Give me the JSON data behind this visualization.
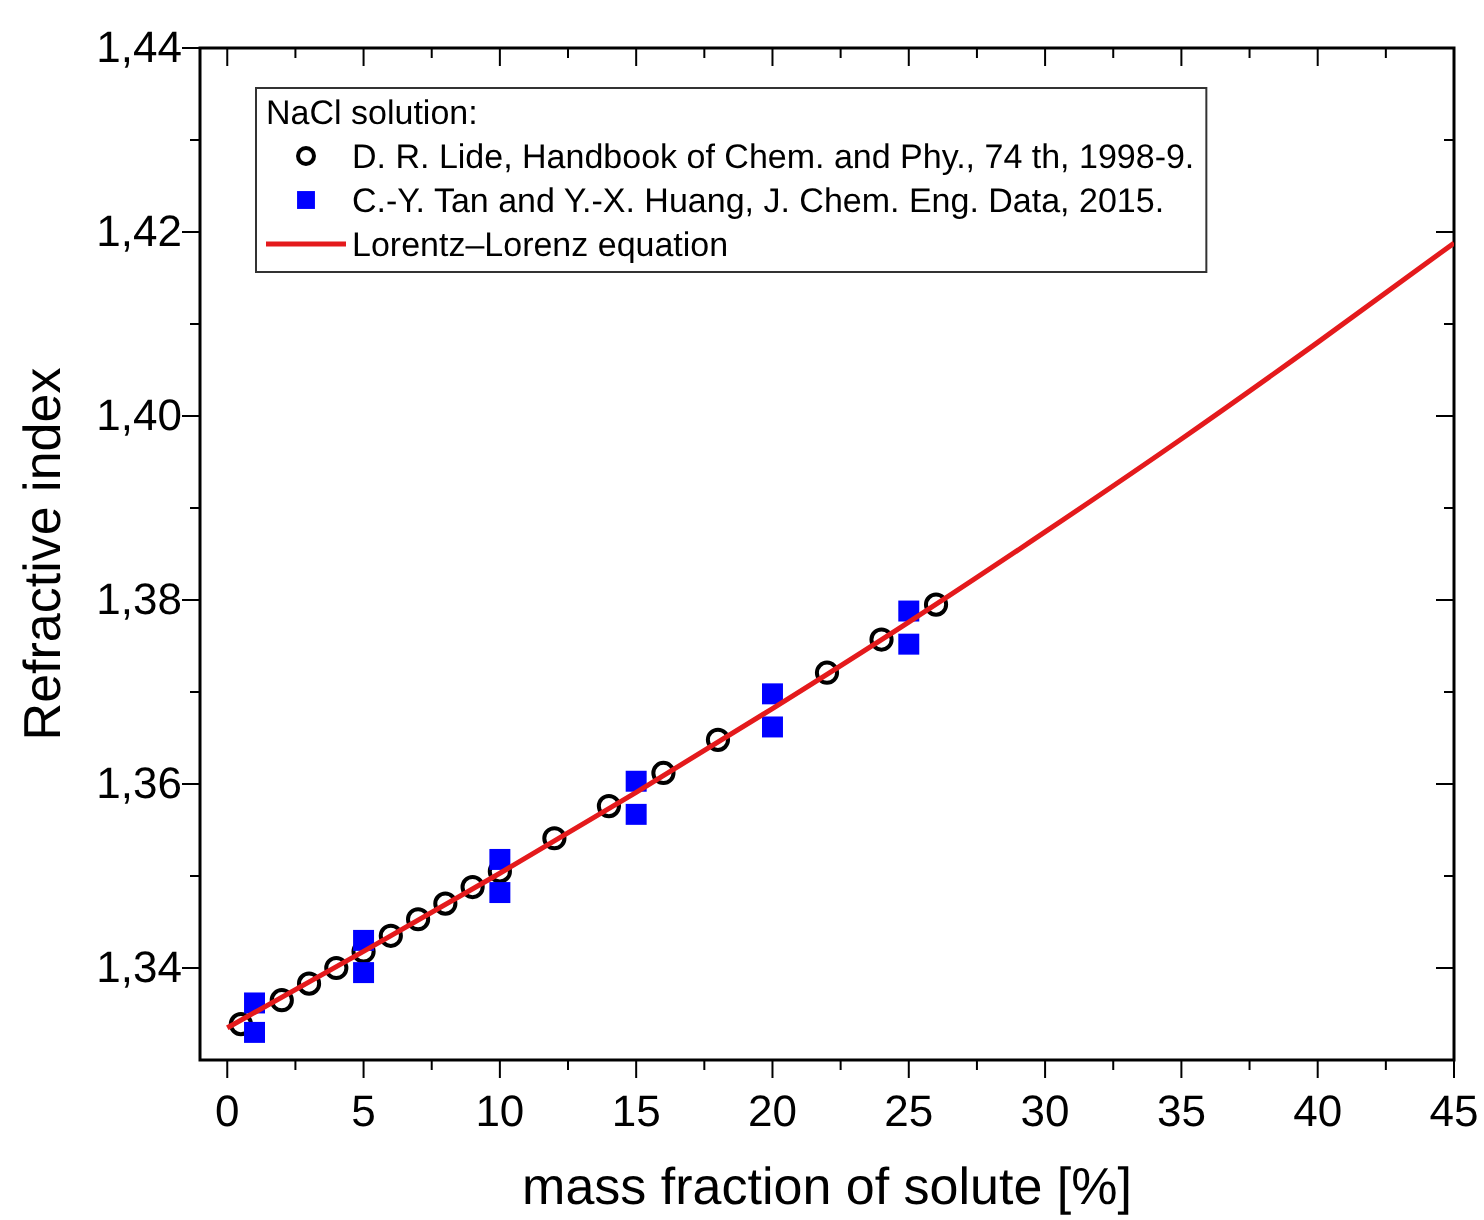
{
  "chart_data": {
    "type": "scatter",
    "xlabel": "mass fraction of solute [%]",
    "ylabel": "Refractive index",
    "legend_title": "NaCl solution:",
    "xlim": [
      -1,
      45
    ],
    "ylim": [
      1.33,
      1.44
    ],
    "xticks": [
      0,
      {
        "value": 2.5,
        "label": null
      },
      5,
      {
        "value": 7.5,
        "label": null
      },
      10,
      {
        "value": 12.5,
        "label": null
      },
      15,
      {
        "value": 17.5,
        "label": null
      },
      20,
      {
        "value": 22.5,
        "label": null
      },
      25,
      {
        "value": 27.5,
        "label": null
      },
      30,
      {
        "value": 32.5,
        "label": null
      },
      35,
      {
        "value": 37.5,
        "label": null
      },
      40,
      {
        "value": 42.5,
        "label": null
      },
      45
    ],
    "yticks": [
      {
        "value": 1.34,
        "label": "1,34"
      },
      {
        "value": 1.35,
        "label": null
      },
      {
        "value": 1.36,
        "label": "1,36"
      },
      {
        "value": 1.37,
        "label": null
      },
      {
        "value": 1.38,
        "label": "1,38"
      },
      {
        "value": 1.39,
        "label": null
      },
      {
        "value": 1.4,
        "label": "1,40"
      },
      {
        "value": 1.41,
        "label": null
      },
      {
        "value": 1.42,
        "label": "1,42"
      },
      {
        "value": 1.43,
        "label": null
      },
      {
        "value": 1.44,
        "label": "1,44"
      }
    ],
    "grid": false,
    "legend": "top left",
    "series": [
      {
        "name": "D. R. Lide, Handbook of Chem. and Phy., 74 th, 1998-9.",
        "marker": "circle",
        "color": "#000000",
        "x": [
          0.5,
          2,
          3,
          4,
          5,
          6,
          7,
          8,
          9,
          10,
          12,
          14,
          16,
          18,
          20,
          22,
          24,
          26
        ],
        "values": [
          1.3339,
          1.3365,
          1.3383,
          1.34,
          1.3418,
          1.3435,
          1.3453,
          1.347,
          1.3488,
          1.3505,
          1.3541,
          1.3576,
          1.3612,
          1.3648,
          null,
          1.3721,
          1.3757,
          1.3795
        ]
      },
      {
        "name": "C.-Y. Tan and Y.-X. Huang, J. Chem. Eng. Data, 2015.",
        "marker": "square",
        "color": "#0000ff",
        "x": [
          1,
          1,
          5,
          5,
          10,
          10,
          15,
          15,
          20,
          20,
          25,
          25
        ],
        "values": [
          1.3362,
          1.333,
          1.343,
          1.3395,
          1.3518,
          1.3482,
          1.3603,
          1.3567,
          1.3698,
          1.3662,
          1.3788,
          1.3752
        ]
      },
      {
        "name": "Lorentz–Lorenz equation",
        "type": "line",
        "marker": "none",
        "line_style": "solid",
        "color": "#e41a1c",
        "x": [
          0,
          5,
          10,
          15,
          20,
          25,
          30,
          35,
          40,
          45
        ],
        "values": [
          1.3335,
          1.3418,
          1.3503,
          1.3591,
          1.3682,
          1.3776,
          1.3874,
          1.3975,
          1.408,
          1.4188
        ]
      }
    ]
  }
}
